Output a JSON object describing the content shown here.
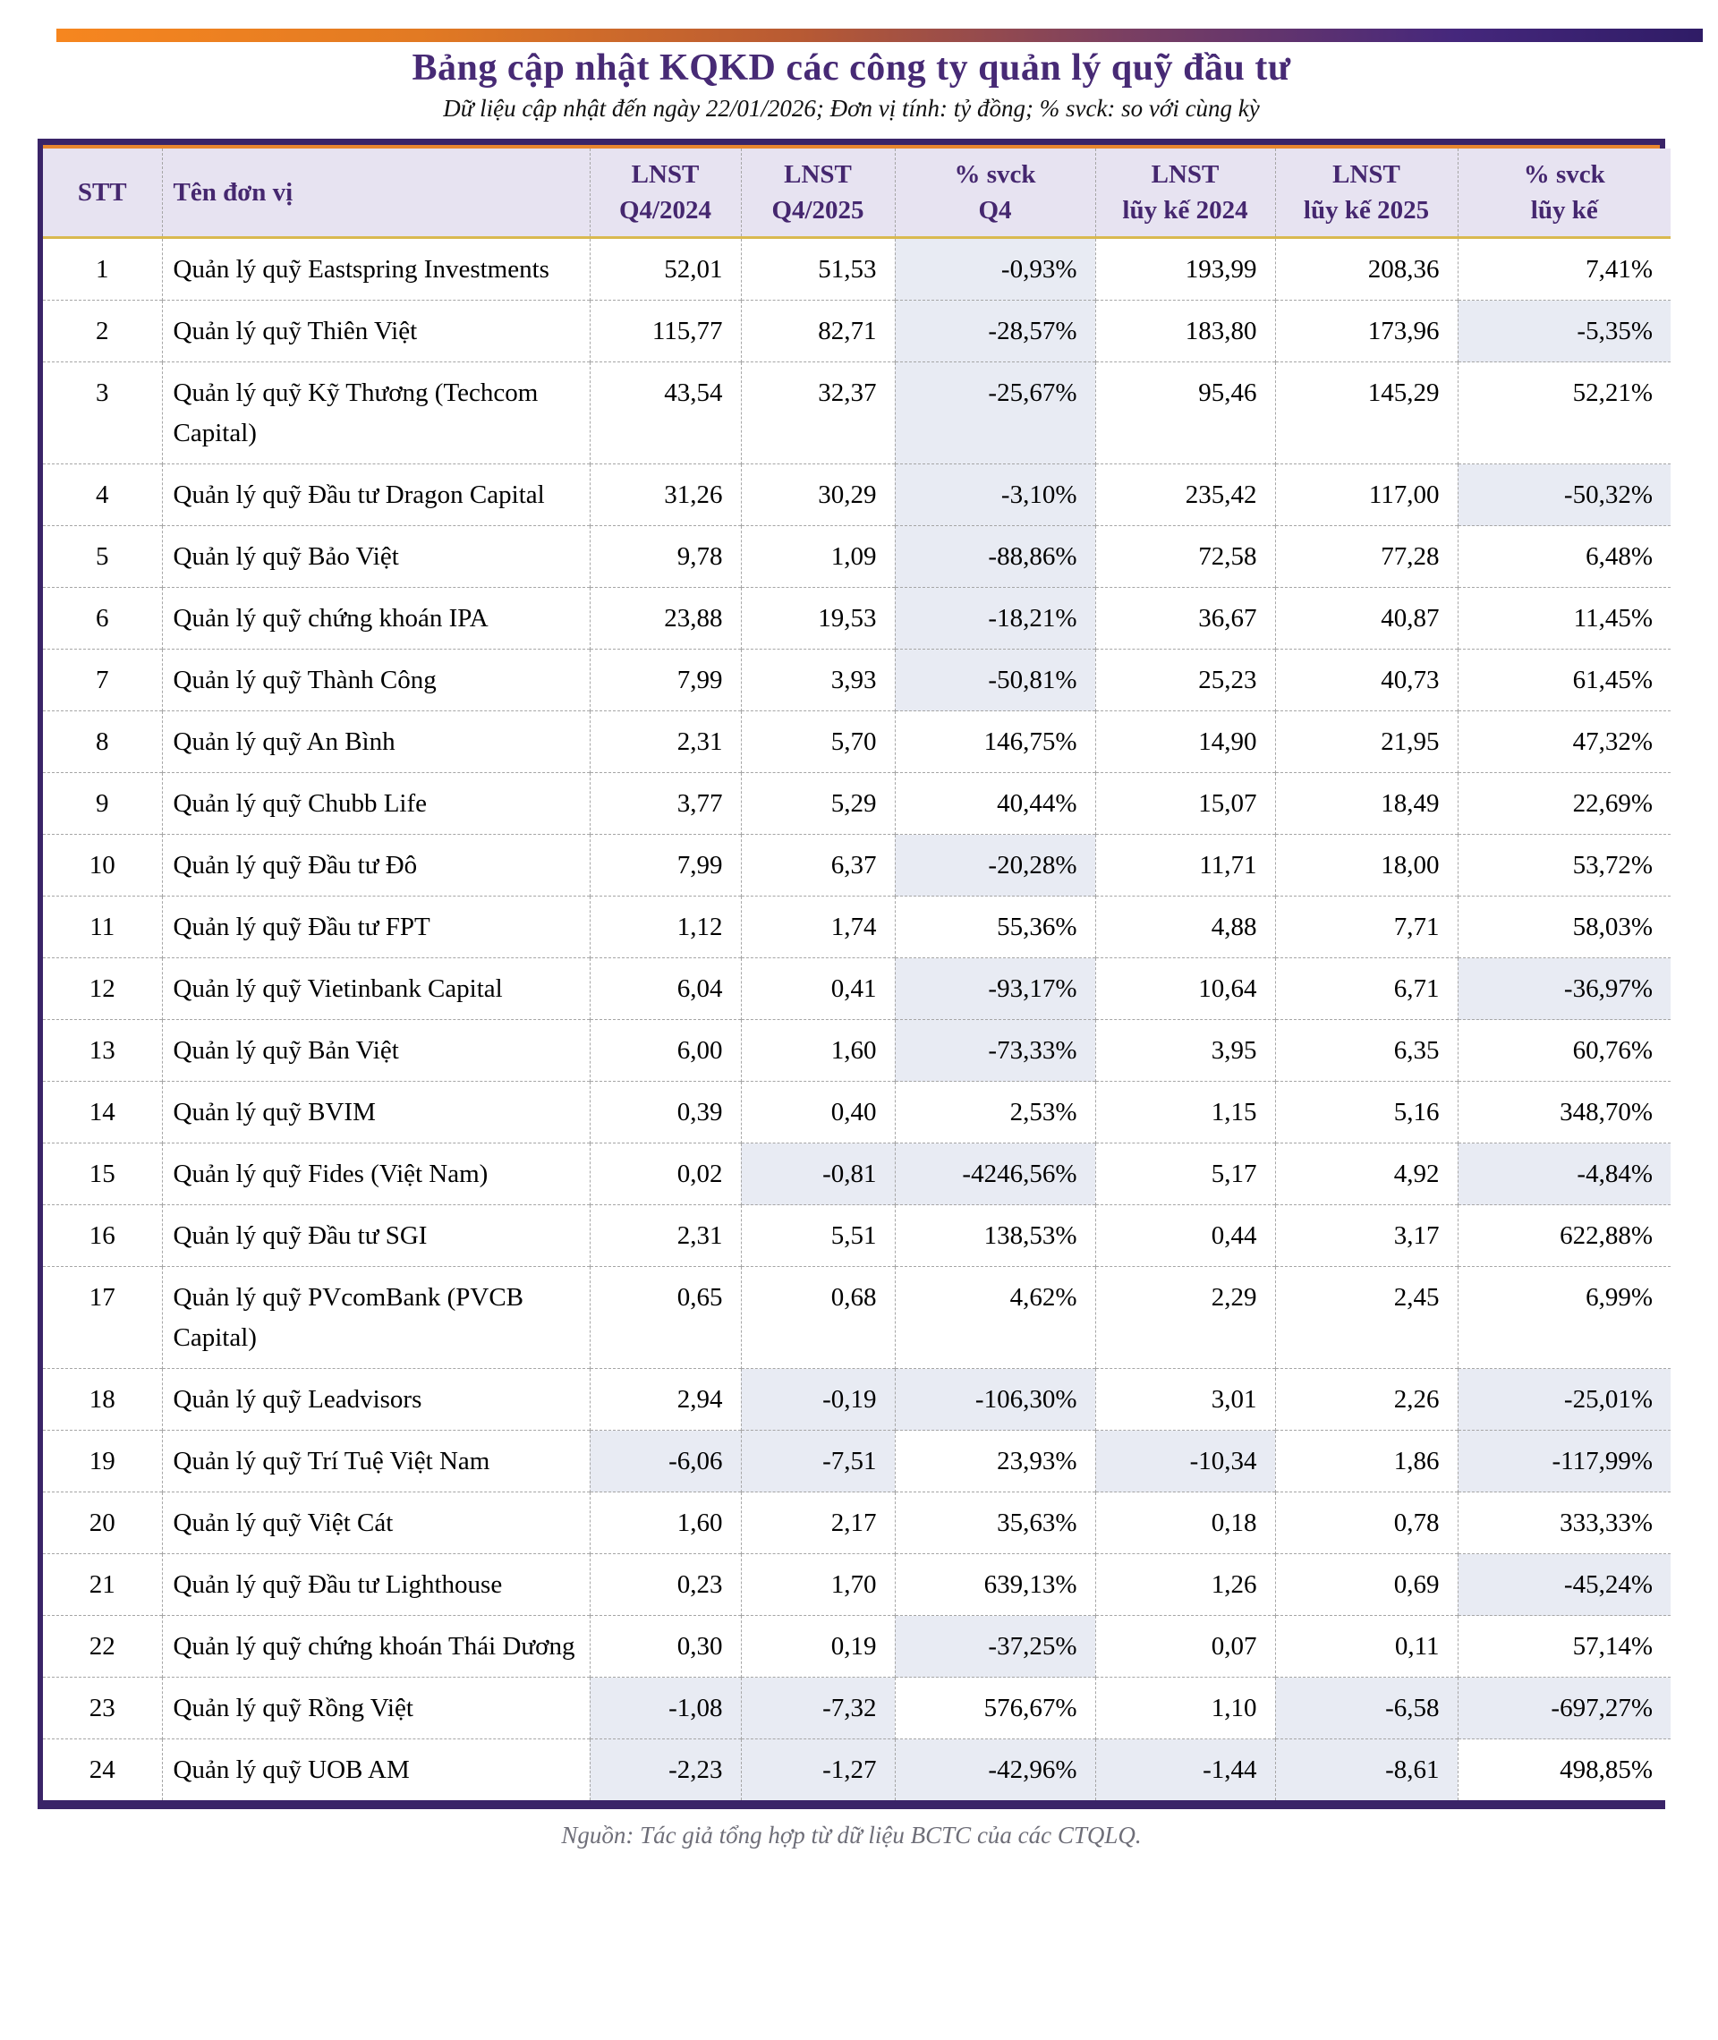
{
  "title": "Bảng cập nhật KQKD các công ty quản lý quỹ đầu tư",
  "subtitle": "Dữ liệu cập nhật đến ngày 22/01/2026; Đơn vị tính: tỷ đồng; % svck: so với cùng kỳ",
  "source_note": "Nguồn: Tác giả tổng hợp từ dữ liệu BCTC của các CTQLQ.",
  "colors": {
    "accent_orange": "#F6861F",
    "brand_purple": "#3A2468",
    "header_text": "#45276F",
    "header_bg": "#E7E3F1",
    "gold_divider": "#D9B950",
    "negative_cell_bg": "#E8EBF3"
  },
  "chart_data": {
    "type": "table",
    "title": "Bảng cập nhật KQKD các công ty quản lý quỹ đầu tư",
    "unit": "tỷ đồng",
    "columns": [
      "STT",
      "Tên đơn vị",
      "LNST\nQ4/2024",
      "LNST\nQ4/2025",
      "% svck\nQ4",
      "LNST\nlũy kế 2024",
      "LNST\nlũy kế 2025",
      "% svck\nlũy kế"
    ],
    "negative_values_highlighted": true,
    "rows": [
      [
        "1",
        "Quản lý quỹ Eastspring Investments",
        "52,01",
        "51,53",
        "-0,93%",
        "193,99",
        "208,36",
        "7,41%"
      ],
      [
        "2",
        "Quản lý quỹ Thiên Việt",
        "115,77",
        "82,71",
        "-28,57%",
        "183,80",
        "173,96",
        "-5,35%"
      ],
      [
        "3",
        "Quản lý quỹ Kỹ Thương (Techcom Capital)",
        "43,54",
        "32,37",
        "-25,67%",
        "95,46",
        "145,29",
        "52,21%"
      ],
      [
        "4",
        "Quản lý quỹ Đầu tư Dragon Capital",
        "31,26",
        "30,29",
        "-3,10%",
        "235,42",
        "117,00",
        "-50,32%"
      ],
      [
        "5",
        "Quản lý quỹ Bảo Việt",
        "9,78",
        "1,09",
        "-88,86%",
        "72,58",
        "77,28",
        "6,48%"
      ],
      [
        "6",
        "Quản lý quỹ chứng khoán IPA",
        "23,88",
        "19,53",
        "-18,21%",
        "36,67",
        "40,87",
        "11,45%"
      ],
      [
        "7",
        "Quản lý quỹ Thành Công",
        "7,99",
        "3,93",
        "-50,81%",
        "25,23",
        "40,73",
        "61,45%"
      ],
      [
        "8",
        "Quản lý quỹ An Bình",
        "2,31",
        "5,70",
        "146,75%",
        "14,90",
        "21,95",
        "47,32%"
      ],
      [
        "9",
        "Quản lý quỹ Chubb Life",
        "3,77",
        "5,29",
        "40,44%",
        "15,07",
        "18,49",
        "22,69%"
      ],
      [
        "10",
        "Quản lý quỹ Đầu tư Đô",
        "7,99",
        "6,37",
        "-20,28%",
        "11,71",
        "18,00",
        "53,72%"
      ],
      [
        "11",
        "Quản lý quỹ Đầu tư FPT",
        "1,12",
        "1,74",
        "55,36%",
        "4,88",
        "7,71",
        "58,03%"
      ],
      [
        "12",
        "Quản lý quỹ Vietinbank Capital",
        "6,04",
        "0,41",
        "-93,17%",
        "10,64",
        "6,71",
        "-36,97%"
      ],
      [
        "13",
        "Quản lý quỹ Bản Việt",
        "6,00",
        "1,60",
        "-73,33%",
        "3,95",
        "6,35",
        "60,76%"
      ],
      [
        "14",
        "Quản lý quỹ BVIM",
        "0,39",
        "0,40",
        "2,53%",
        "1,15",
        "5,16",
        "348,70%"
      ],
      [
        "15",
        "Quản lý quỹ Fides (Việt Nam)",
        "0,02",
        "-0,81",
        "-4246,56%",
        "5,17",
        "4,92",
        "-4,84%"
      ],
      [
        "16",
        "Quản lý quỹ Đầu tư SGI",
        "2,31",
        "5,51",
        "138,53%",
        "0,44",
        "3,17",
        "622,88%"
      ],
      [
        "17",
        "Quản lý quỹ PVcomBank (PVCB Capital)",
        "0,65",
        "0,68",
        "4,62%",
        "2,29",
        "2,45",
        "6,99%"
      ],
      [
        "18",
        "Quản lý quỹ Leadvisors",
        "2,94",
        "-0,19",
        "-106,30%",
        "3,01",
        "2,26",
        "-25,01%"
      ],
      [
        "19",
        "Quản lý quỹ Trí Tuệ Việt Nam",
        "-6,06",
        "-7,51",
        "23,93%",
        "-10,34",
        "1,86",
        "-117,99%"
      ],
      [
        "20",
        "Quản lý quỹ Việt Cát",
        "1,60",
        "2,17",
        "35,63%",
        "0,18",
        "0,78",
        "333,33%"
      ],
      [
        "21",
        "Quản lý quỹ Đầu tư Lighthouse",
        "0,23",
        "1,70",
        "639,13%",
        "1,26",
        "0,69",
        "-45,24%"
      ],
      [
        "22",
        "Quản lý quỹ chứng khoán Thái Dương",
        "0,30",
        "0,19",
        "-37,25%",
        "0,07",
        "0,11",
        "57,14%"
      ],
      [
        "23",
        "Quản lý quỹ Rồng Việt",
        "-1,08",
        "-7,32",
        "576,67%",
        "1,10",
        "-6,58",
        "-697,27%"
      ],
      [
        "24",
        "Quản lý quỹ UOB AM",
        "-2,23",
        "-1,27",
        "-42,96%",
        "-1,44",
        "-8,61",
        "498,85%"
      ]
    ]
  }
}
